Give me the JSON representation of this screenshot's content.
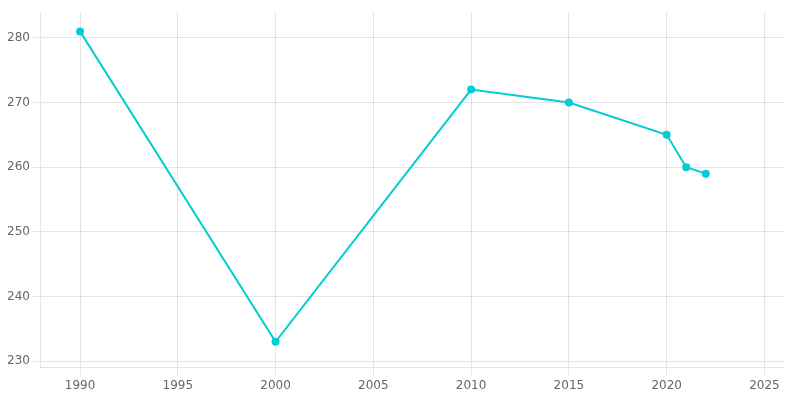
{
  "chart_data": {
    "type": "line",
    "x": [
      1990,
      2000,
      2010,
      2015,
      2020,
      2021,
      2022
    ],
    "values": [
      281,
      233,
      272,
      270,
      265,
      260,
      259
    ],
    "color": "#00CED1",
    "marker": "circle",
    "xlim": [
      1988,
      2026
    ],
    "ylim": [
      229,
      284
    ],
    "xticks": [
      1990,
      1995,
      2000,
      2005,
      2010,
      2015,
      2020,
      2025
    ],
    "yticks": [
      230,
      240,
      250,
      260,
      270,
      280
    ],
    "grid": true
  }
}
